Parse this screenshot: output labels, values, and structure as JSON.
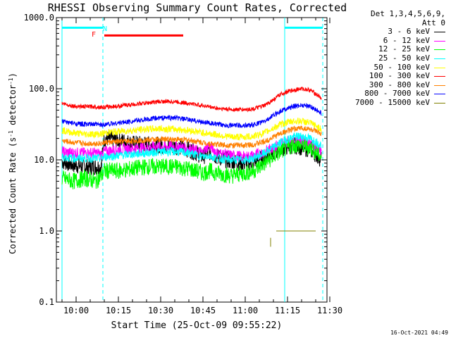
{
  "chart_data": {
    "type": "line",
    "title": "RHESSI Observing Summary Count Rates, Corrected",
    "xlabel": "Start Time (25-Oct-09 09:55:22)",
    "ylabel_main": "Corrected Count Rate (s",
    "ylabel_sup1": "-1",
    "ylabel_mid": " detector",
    "ylabel_sup2": "-1",
    "ylabel_end": ")",
    "yscale": "log",
    "ylim": [
      0.1,
      1000
    ],
    "xlim_minutes": [
      -2,
      94
    ],
    "y_ticks": [
      "1000.0",
      "100.0",
      "10.0",
      "1.0",
      "0.1"
    ],
    "x_ticks": [
      {
        "label": "10:00",
        "t": 5
      },
      {
        "label": "10:15",
        "t": 20
      },
      {
        "label": "10:30",
        "t": 35
      },
      {
        "label": "10:45",
        "t": 50
      },
      {
        "label": "11:00",
        "t": 65
      },
      {
        "label": "11:15",
        "t": 80
      },
      {
        "label": "11:30",
        "t": 95
      }
    ],
    "legend_header": [
      "Det 1,3,4,5,6,9,",
      "Att 0"
    ],
    "series": [
      {
        "name": "3 - 6 keV",
        "color": "#000000",
        "x": [
          0,
          4,
          8,
          12,
          14,
          15,
          20,
          25,
          30,
          35,
          40,
          45,
          50,
          52,
          55,
          60,
          65,
          68,
          72,
          75,
          78,
          82,
          85,
          88,
          90,
          92
        ],
        "values": [
          9.5,
          8.5,
          8,
          8,
          8,
          20,
          19,
          17,
          16.5,
          16,
          15.5,
          14,
          11,
          13,
          11,
          9.5,
          9,
          9.5,
          11,
          12.5,
          14.5,
          16,
          15,
          14,
          12,
          10
        ]
      },
      {
        "name": "6 - 12 keV",
        "color": "#ff00ff",
        "x": [
          0,
          4,
          8,
          12,
          14,
          15,
          20,
          25,
          30,
          35,
          40,
          45,
          50,
          52,
          55,
          60,
          65,
          68,
          72,
          75,
          78,
          82,
          85,
          88,
          90,
          92
        ],
        "values": [
          13,
          12.5,
          12.5,
          12.5,
          12,
          13,
          14,
          14.5,
          15,
          15.5,
          15.5,
          14.5,
          12.5,
          16,
          12.5,
          11.5,
          11,
          11.5,
          13,
          15,
          17.5,
          19,
          18.5,
          17,
          15,
          13
        ]
      },
      {
        "name": "12 - 25 keV",
        "color": "#00ff00",
        "x": [
          0,
          4,
          8,
          12,
          14,
          15,
          20,
          25,
          30,
          35,
          40,
          45,
          50,
          52,
          55,
          60,
          65,
          68,
          72,
          75,
          78,
          82,
          85,
          88,
          90,
          92
        ],
        "values": [
          5.5,
          5,
          5.5,
          5,
          6,
          7,
          7,
          7.5,
          8,
          8,
          8,
          7.5,
          6.5,
          7,
          6.5,
          6,
          6.5,
          7,
          9,
          11,
          13.5,
          16,
          16,
          15,
          13,
          11
        ]
      },
      {
        "name": "25 - 50 keV",
        "color": "#00ffff",
        "x": [
          0,
          4,
          8,
          12,
          14,
          15,
          20,
          25,
          30,
          35,
          40,
          45,
          50,
          52,
          55,
          60,
          65,
          68,
          72,
          75,
          78,
          82,
          85,
          88,
          90,
          92
        ],
        "values": [
          11,
          10.5,
          10.5,
          10.5,
          10.5,
          11,
          11.5,
          12,
          12.5,
          13,
          13,
          12.5,
          11,
          11.5,
          10.5,
          10,
          10,
          10.5,
          12.5,
          15,
          18,
          21,
          21.5,
          20,
          18,
          16
        ]
      },
      {
        "name": "50 - 100 keV",
        "color": "#ffff00",
        "x": [
          0,
          4,
          8,
          12,
          14,
          15,
          20,
          25,
          30,
          35,
          40,
          45,
          50,
          52,
          55,
          60,
          65,
          68,
          72,
          75,
          78,
          82,
          85,
          88,
          90,
          92
        ],
        "values": [
          26,
          24,
          23,
          23,
          23,
          24,
          25,
          26,
          27,
          27.5,
          27,
          26,
          24,
          23.5,
          22.5,
          21,
          21,
          21.5,
          24,
          28,
          32,
          35,
          35,
          33,
          30,
          27
        ]
      },
      {
        "name": "100 - 300 keV",
        "color": "#ff0000",
        "x": [
          0,
          4,
          8,
          12,
          14,
          15,
          20,
          25,
          30,
          35,
          40,
          45,
          50,
          52,
          55,
          60,
          65,
          68,
          72,
          75,
          78,
          82,
          85,
          88,
          90,
          92
        ],
        "values": [
          62,
          57,
          56,
          56,
          55,
          55,
          57,
          60,
          63,
          66,
          66,
          62,
          58,
          56,
          53,
          51,
          51,
          52,
          58,
          70,
          85,
          96,
          100,
          96,
          85,
          73
        ]
      },
      {
        "name": "300 - 800 keV",
        "color": "#ff8000",
        "x": [
          0,
          4,
          8,
          12,
          14,
          15,
          20,
          25,
          30,
          35,
          40,
          45,
          50,
          52,
          55,
          60,
          65,
          68,
          72,
          75,
          78,
          82,
          85,
          88,
          90,
          92
        ],
        "values": [
          18.5,
          17.5,
          17,
          17,
          17,
          17.5,
          18,
          18.5,
          19,
          19.5,
          19.5,
          19,
          17.5,
          17,
          16.5,
          16,
          16,
          16.5,
          18,
          21,
          24,
          27,
          28,
          27,
          25,
          22.5
        ]
      },
      {
        "name": "800 - 7000 keV",
        "color": "#0000ff",
        "x": [
          0,
          4,
          8,
          12,
          14,
          15,
          20,
          25,
          30,
          35,
          40,
          45,
          50,
          52,
          55,
          60,
          65,
          68,
          72,
          75,
          78,
          82,
          85,
          88,
          90,
          92
        ],
        "values": [
          35,
          32.5,
          31.5,
          31.5,
          31,
          31.5,
          33,
          35,
          37,
          39,
          39,
          36.5,
          34,
          33,
          31.5,
          30.5,
          30.5,
          31,
          35,
          42,
          50,
          56,
          59,
          57,
          51,
          45
        ]
      },
      {
        "name": "7000 - 15000 keV",
        "color": "#808000",
        "x": [
          76,
          77,
          78,
          80,
          82,
          84,
          86,
          88,
          90
        ],
        "values": [
          1.0,
          1.0,
          1.0,
          1.0,
          1.0,
          1.0,
          1.0,
          1.0,
          1.0
        ]
      }
    ],
    "annotations": {
      "night_labels": [
        "N"
      ],
      "flare_labels": [
        "F"
      ],
      "eclipse_times": [
        0,
        14.5,
        79,
        92.5
      ],
      "night_bars": [
        {
          "start": 0,
          "end": 14.5,
          "level": 720
        },
        {
          "start": 79,
          "end": 92.5,
          "level": 720
        }
      ],
      "flare_bar": {
        "start": 15,
        "end": 43,
        "level": 560
      },
      "small_spike": {
        "t": 74,
        "low": 0.6,
        "high": 0.8
      }
    },
    "grid": false,
    "legend_placement": "top-right outside"
  },
  "colors": {
    "night_bar": "#00ffff",
    "flare_bar": "#ff0000",
    "eclipse_lines": "#00ffff"
  },
  "timestamp": "16-Oct-2021 04:49"
}
